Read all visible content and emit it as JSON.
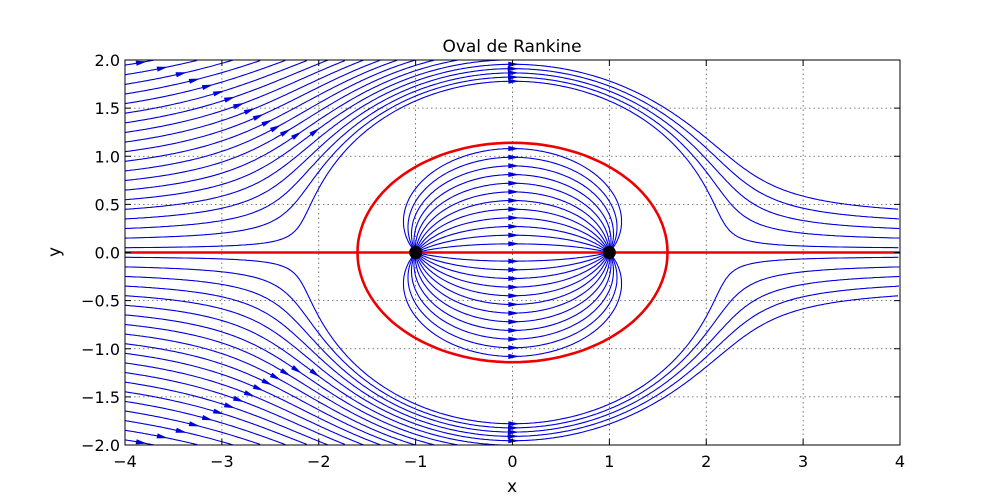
{
  "chart_data": {
    "type": "streamplot",
    "title": "Oval de Rankine",
    "xlabel": "x",
    "ylabel": "y",
    "xlim": [
      -4,
      4
    ],
    "ylim": [
      -2,
      2
    ],
    "xticks": [
      -4,
      -3,
      -2,
      -1,
      0,
      1,
      2,
      3,
      4
    ],
    "yticks": [
      -2.0,
      -1.5,
      -1.0,
      -0.5,
      0.0,
      0.5,
      1.0,
      1.5,
      2.0
    ],
    "xtick_labels": [
      "−4",
      "−3",
      "−2",
      "−1",
      "0",
      "1",
      "2",
      "3",
      "4"
    ],
    "ytick_labels": [
      "−2.0",
      "−1.5",
      "−1.0",
      "−0.5",
      "0.0",
      "0.5",
      "1.0",
      "1.5",
      "2.0"
    ],
    "grid": true,
    "flow": {
      "uniform_velocity": 1.0,
      "source_position": [
        -1,
        0
      ],
      "sink_position": [
        1,
        0
      ],
      "oval_half_length": 1.6,
      "oval_half_height": 1.14
    },
    "colors": {
      "streamlines": "#0000dd",
      "oval": "#ee0000",
      "source_sink_markers": "#000000"
    }
  }
}
